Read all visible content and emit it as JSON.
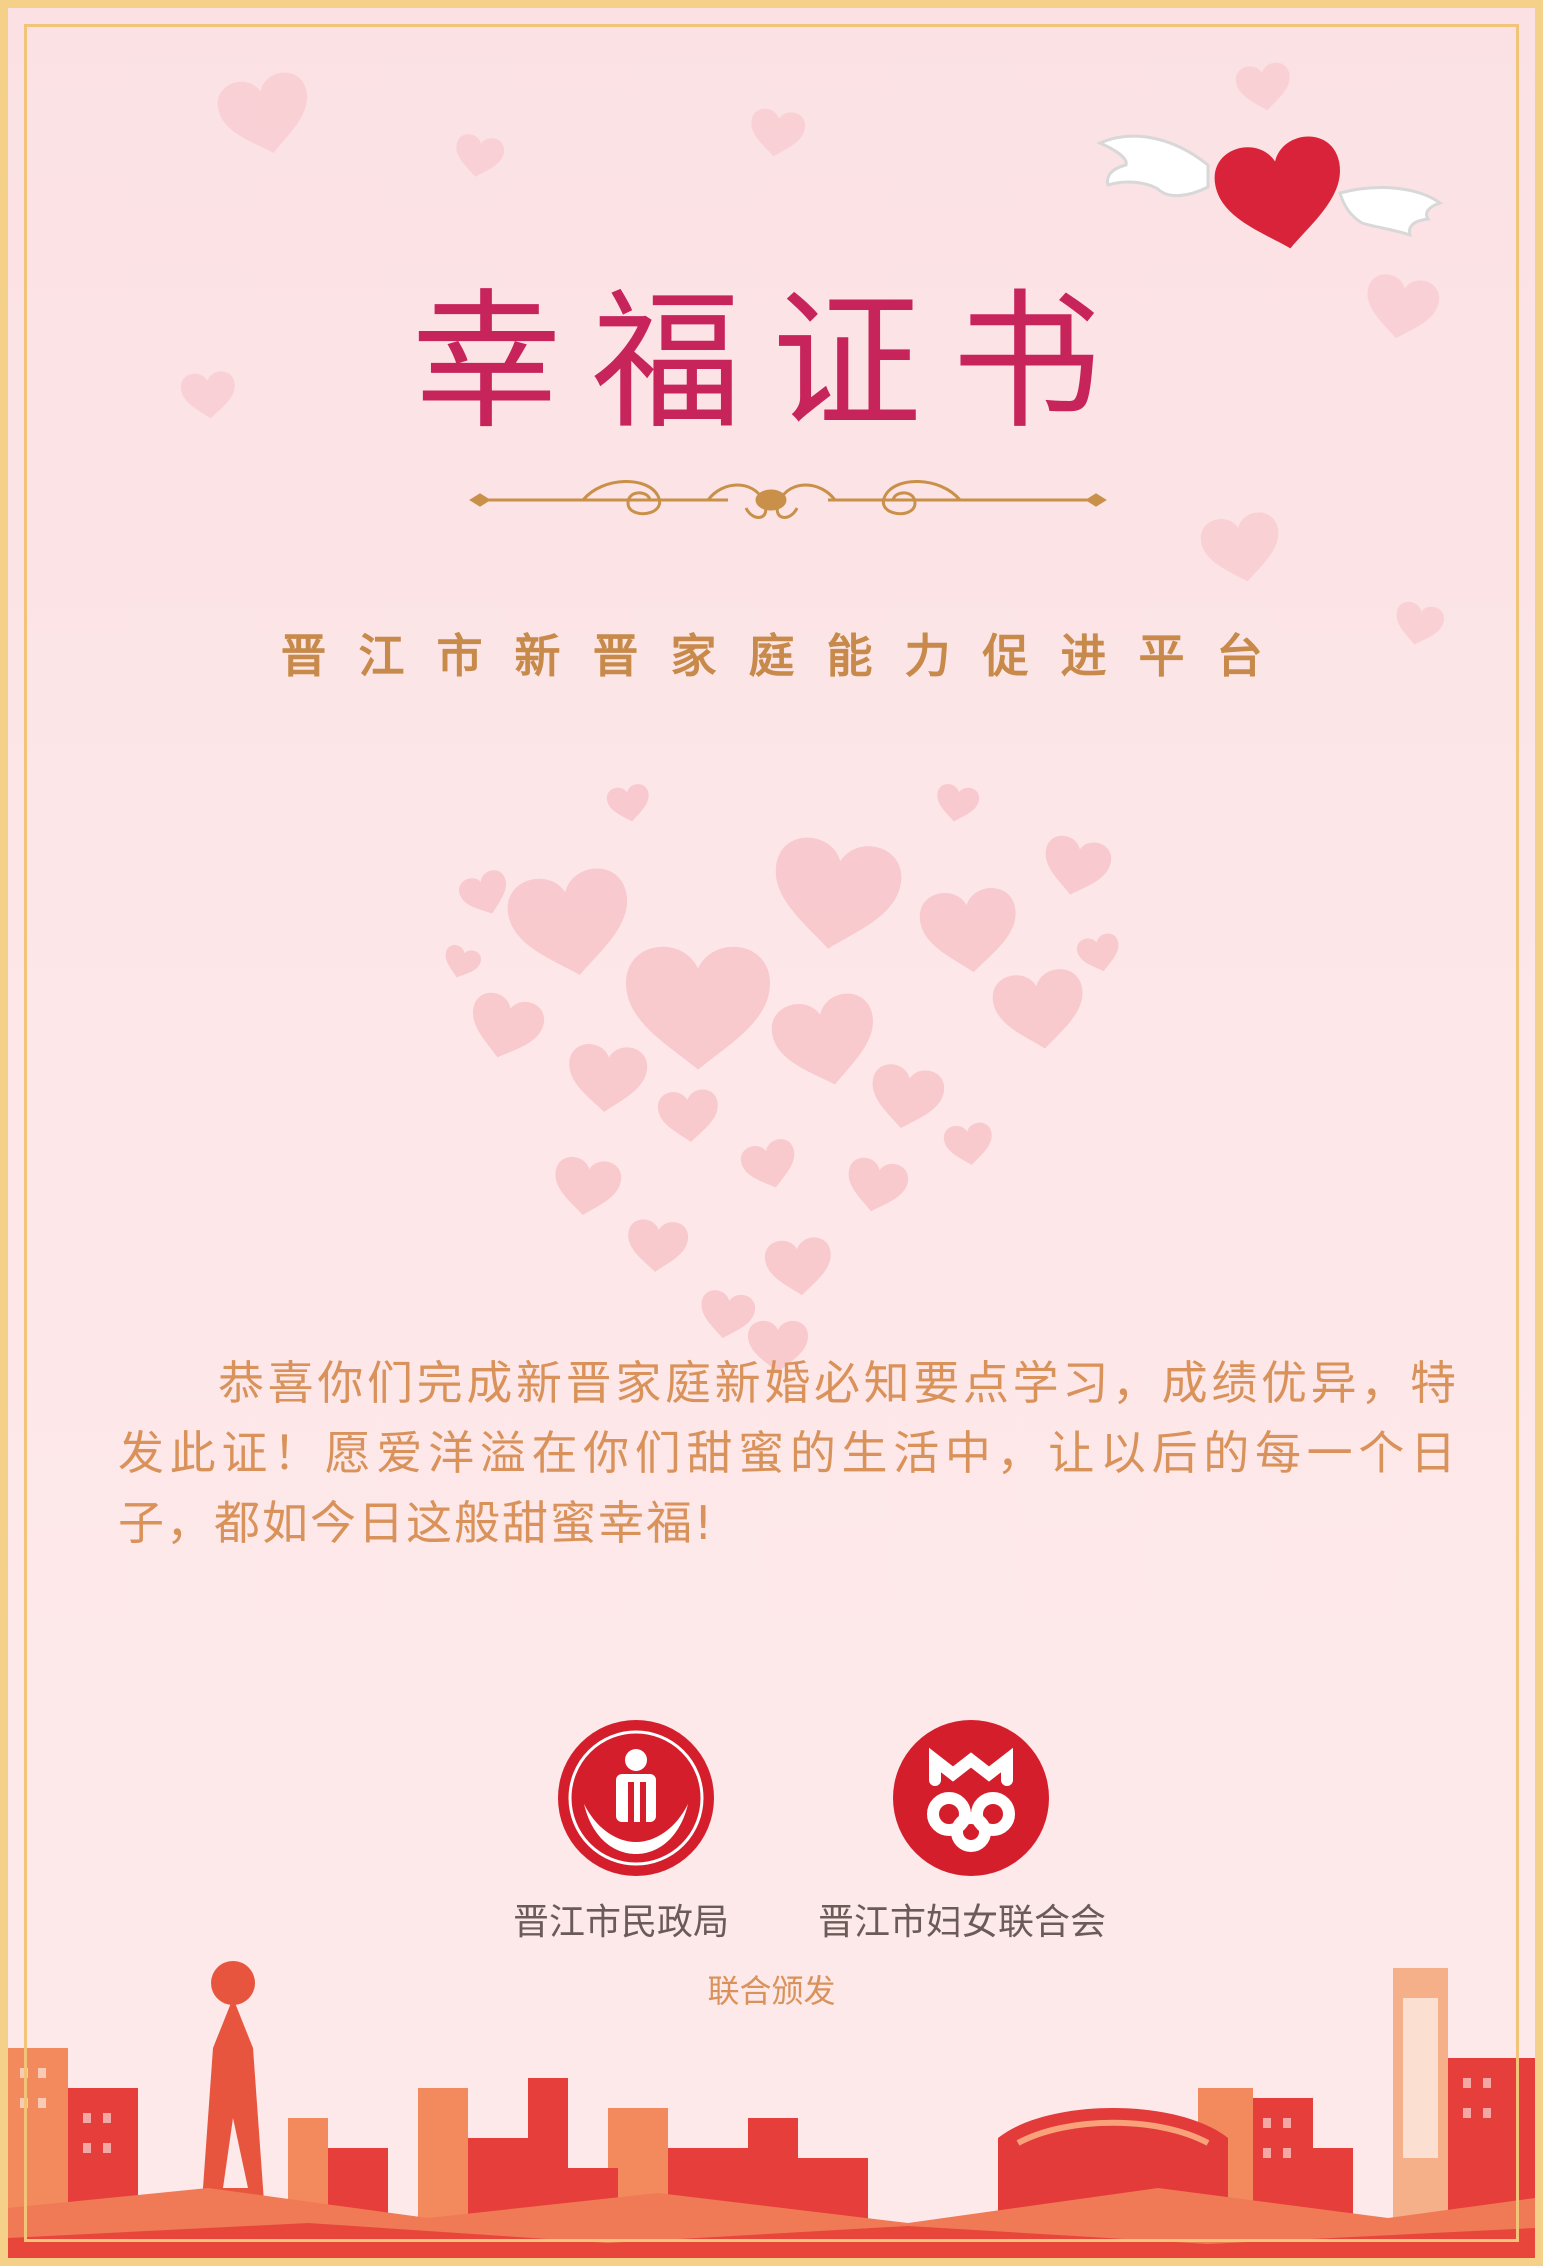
{
  "certificate": {
    "title": "幸福证书",
    "platform": "晋江市新晋家庭能力促进平台",
    "message": "恭喜你们完成新晋家庭新婚必知要点学习，成绩优异，特发此证！愿爱洋溢在你们甜蜜的生活中，让以后的每一个日子，都如今日这般甜蜜幸福!",
    "issuers": {
      "civil_affairs": "晋江市民政局",
      "womens_federation": "晋江市妇女联合会"
    },
    "issued_note": "联合颁发"
  },
  "colors": {
    "background": "#fce4e6",
    "title": "#c8245c",
    "accent_gold": "#c78a4a",
    "heart_pink": "#f7c9cd",
    "logo_red": "#d41e2b",
    "frame_gold": "#f5d089"
  },
  "icons": {
    "winged_heart": "winged-heart-icon",
    "heart_cluster": "heart-cluster-icon",
    "civil_affairs_logo": "civil-affairs-emblem-icon",
    "womens_federation_logo": "womens-federation-emblem-icon",
    "city_skyline": "city-skyline-illustration"
  }
}
